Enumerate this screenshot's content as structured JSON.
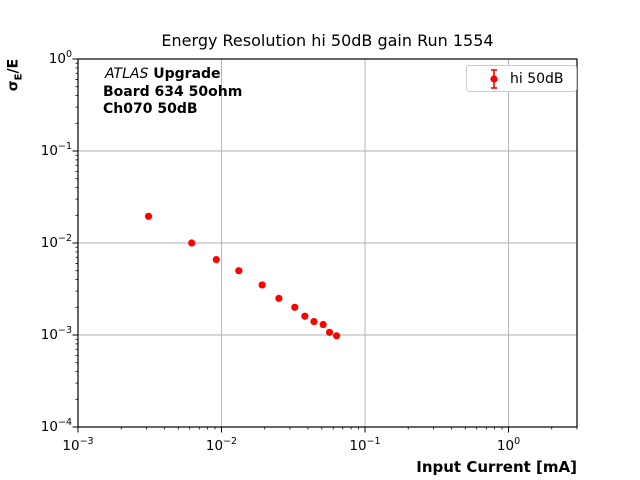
{
  "figure_title": "Energy Resolution hi 50dB gain Run 1554",
  "axes": {
    "xlabel": "Input Current [mA]",
    "ylabel_symbol": "σ",
    "ylabel_subscript": "E",
    "ylabel_suffix": "/E"
  },
  "annotation": {
    "line1_italic": "ATLAS",
    "line1_bold": " Upgrade",
    "line2": "Board 634 50ohm",
    "line3": "Ch070 50dB"
  },
  "legend": {
    "label": "hi 50dB"
  },
  "chart_data": {
    "type": "scatter",
    "title": "Energy Resolution hi 50dB gain Run 1554",
    "xlabel": "Input Current [mA]",
    "ylabel": "sigma_E / E",
    "xscale": "log",
    "yscale": "log",
    "xlim": [
      0.001,
      3
    ],
    "ylim": [
      0.0001,
      1
    ],
    "grid": true,
    "legend_position": "upper right",
    "x_tick_exponents": [
      -3,
      -2,
      -1,
      0
    ],
    "y_tick_exponents": [
      0,
      -1,
      -2,
      -3,
      -4
    ],
    "series": [
      {
        "name": "hi 50dB",
        "color": "#ff0000",
        "marker": "circle-errorbar",
        "x": [
          0.0031,
          0.0062,
          0.0092,
          0.0132,
          0.0192,
          0.0251,
          0.0324,
          0.0381,
          0.0441,
          0.0511,
          0.0566,
          0.0634
        ],
        "y": [
          0.0195,
          0.01,
          0.0066,
          0.005,
          0.0035,
          0.0025,
          0.002,
          0.0016,
          0.0014,
          0.0013,
          0.00107,
          0.00098
        ]
      }
    ],
    "colors": {
      "grid": "#b0b0b0",
      "spine": "#000000",
      "marker": "#ff0000",
      "legend_border": "#cccccc"
    }
  }
}
